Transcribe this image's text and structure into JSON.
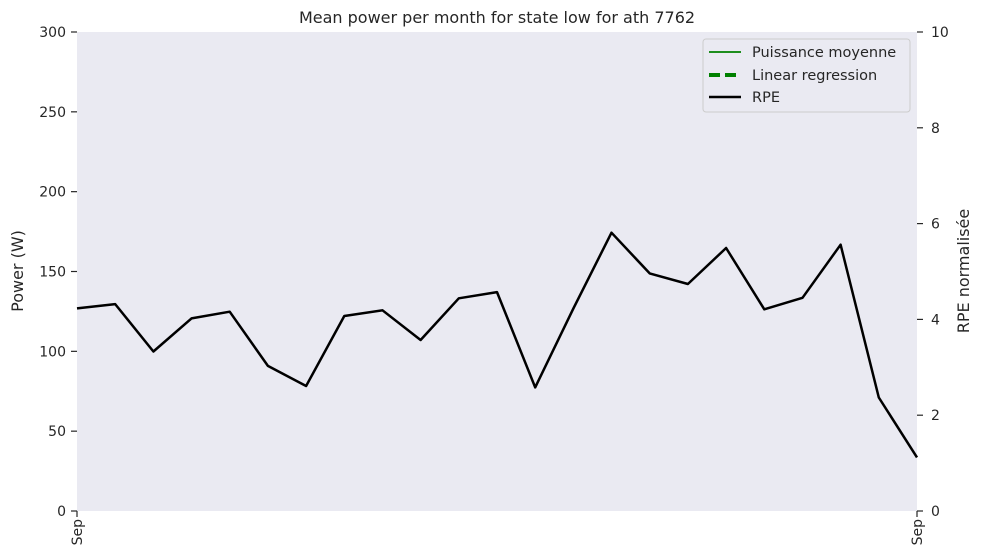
{
  "chart_data": {
    "type": "line",
    "title": "Mean power per month for state low for ath 7762",
    "ylabel": "Power (W)",
    "y2label": "RPE normalisée",
    "ylim": [
      0,
      300
    ],
    "y2lim": [
      0,
      10
    ],
    "yticks": [
      "0",
      "50",
      "100",
      "150",
      "200",
      "250",
      "300"
    ],
    "y2ticks": [
      "0",
      "2",
      "4",
      "6",
      "8",
      "10"
    ],
    "xtick_labels": [
      "Sep",
      "Sep"
    ],
    "grid": false,
    "legend_position": "top-right",
    "legend": [
      {
        "label": "Puissance moyenne",
        "color": "#008000",
        "style": "solid"
      },
      {
        "label": "Linear regression",
        "color": "#008000",
        "style": "dashed"
      },
      {
        "label": "RPE",
        "color": "#000000",
        "style": "solid"
      }
    ],
    "series": [
      {
        "name": "RPE",
        "axis": "right",
        "color": "#000000",
        "values": [
          4.23,
          4.32,
          3.33,
          4.02,
          4.16,
          3.03,
          2.61,
          4.07,
          4.19,
          3.57,
          4.44,
          4.57,
          2.58,
          4.23,
          5.81,
          4.96,
          4.74,
          5.49,
          4.21,
          4.45,
          5.56,
          2.37,
          1.12
        ]
      }
    ]
  }
}
